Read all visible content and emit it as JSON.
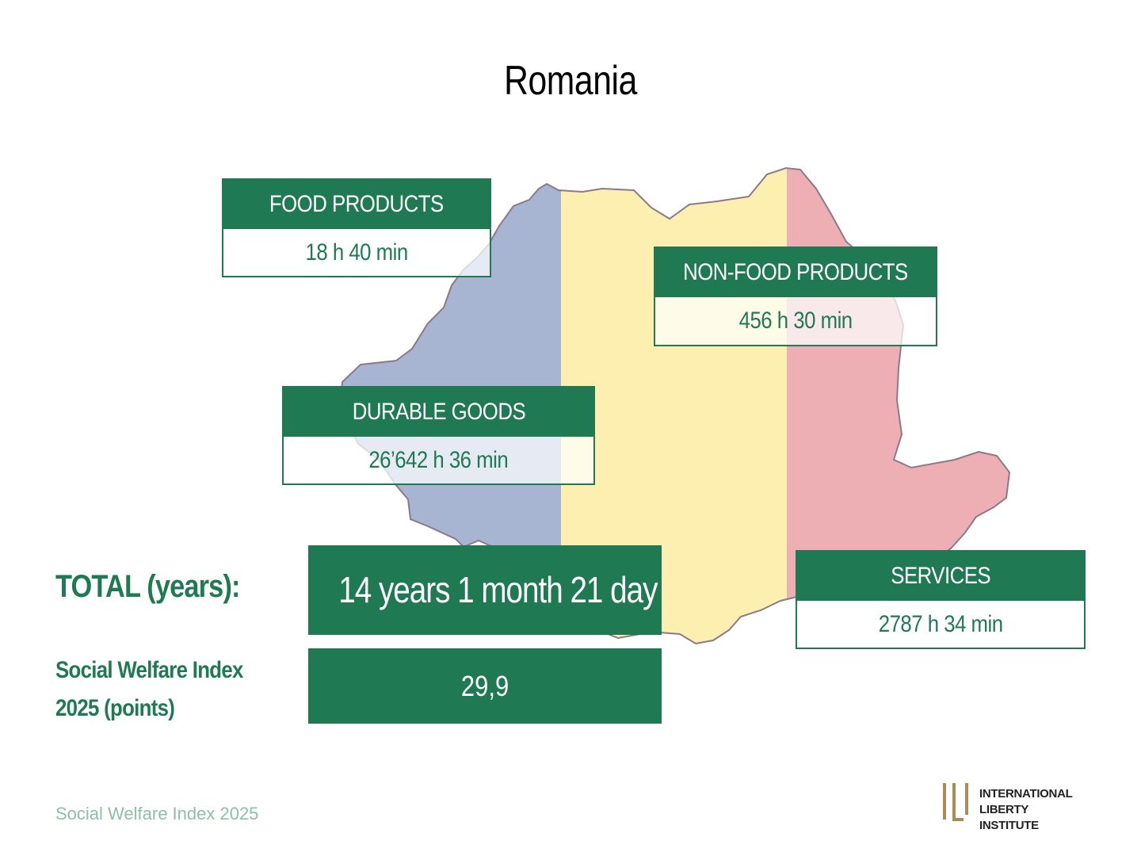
{
  "title": "Romania",
  "colors": {
    "green": "#1f7a53",
    "blue": "#a7b5d2",
    "yellow": "#fcefb0",
    "red": "#eeafb4",
    "gold": "#b08a56"
  },
  "categories": [
    {
      "label": "FOOD PRODUCTS",
      "value": "18 h 40 min"
    },
    {
      "label": "NON-FOOD PRODUCTS",
      "value": "456 h 30 min"
    },
    {
      "label": "DURABLE GOODS",
      "value": "26’642 h 36 min"
    },
    {
      "label": "SERVICES",
      "value": "2787 h 34 min"
    }
  ],
  "total": {
    "label": "TOTAL (years):",
    "value": "14 years 1 month 21 day"
  },
  "index": {
    "label_line1": "Social Welfare Index",
    "label_line2": "2025 (points)",
    "value": "29,9"
  },
  "footer": "Social Welfare Index 2025",
  "logo": {
    "line1": "INTERNATIONAL",
    "line2": "LIBERTY INSTITUTE"
  }
}
